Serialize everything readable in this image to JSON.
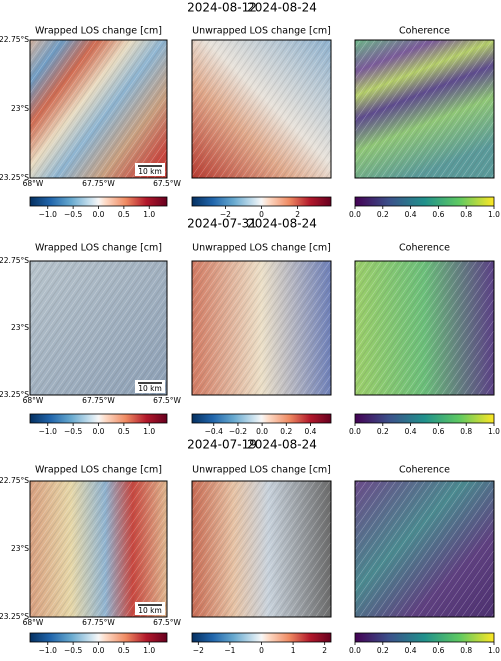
{
  "chart_data": {
    "type": "image_grid",
    "map_axes": {
      "y_labels": [
        "22.75°S",
        "23°S",
        "23.25°S"
      ],
      "x_labels": [
        "68°W",
        "67.75°W",
        "67.5°W"
      ],
      "scale_bar": "10 km"
    },
    "rows": [
      {
        "dates": [
          "2024-08-12",
          "2024-08-24"
        ],
        "panels": [
          {
            "title": "Wrapped LOS change [cm]",
            "colormap": "RdBu_r",
            "lim": [
              -1.35,
              1.35
            ],
            "ticks": [
              {
                "value": -1.0,
                "label": "−1.0"
              },
              {
                "value": -0.5,
                "label": "−0.5"
              },
              {
                "value": 0.0,
                "label": "0.0"
              },
              {
                "value": 0.5,
                "label": "0.5"
              },
              {
                "value": 1.0,
                "label": "1.0"
              }
            ]
          },
          {
            "title": "Unwrapped LOS change [cm]",
            "colormap": "RdBu_r",
            "lim": [
              -3.85,
              3.85
            ],
            "ticks": [
              {
                "value": -2,
                "label": "−2"
              },
              0,
              2
            ]
          },
          {
            "title": "Coherence",
            "colormap": "viridis",
            "lim": [
              0,
              1
            ],
            "ticks": [
              {
                "value": 0.0,
                "label": "0.0"
              },
              0.2,
              0.4,
              0.6,
              0.8,
              {
                "value": 1.0,
                "label": "1.0"
              }
            ]
          }
        ]
      },
      {
        "dates": [
          "2024-07-31",
          "2024-08-24"
        ],
        "panels": [
          {
            "title": "Wrapped LOS change [cm]",
            "colormap": "RdBu_r",
            "lim": [
              -1.35,
              1.35
            ],
            "ticks": [
              {
                "value": -1.0,
                "label": "−1.0"
              },
              {
                "value": -0.5,
                "label": "−0.5"
              },
              {
                "value": 0.0,
                "label": "0.0"
              },
              {
                "value": 0.5,
                "label": "0.5"
              },
              {
                "value": 1.0,
                "label": "1.0"
              }
            ]
          },
          {
            "title": "Unwrapped LOS change [cm]",
            "colormap": "RdBu_r",
            "lim": [
              -0.58,
              0.57
            ],
            "ticks": [
              {
                "value": -0.4,
                "label": "−0.4"
              },
              {
                "value": -0.2,
                "label": "−0.2"
              },
              {
                "value": 0.0,
                "label": "0.0"
              },
              0.2,
              0.4
            ]
          },
          {
            "title": "Coherence",
            "colormap": "viridis",
            "lim": [
              0,
              1
            ],
            "ticks": [
              {
                "value": 0.0,
                "label": "0.0"
              },
              0.2,
              0.4,
              0.6,
              0.8,
              {
                "value": 1.0,
                "label": "1.0"
              }
            ]
          }
        ]
      },
      {
        "dates": [
          "2024-07-19",
          "2024-08-24"
        ],
        "panels": [
          {
            "title": "Wrapped LOS change [cm]",
            "colormap": "RdBu_r",
            "lim": [
              -1.35,
              1.35
            ],
            "ticks": [
              {
                "value": -1.0,
                "label": "−1.0"
              },
              {
                "value": -0.5,
                "label": "−0.5"
              },
              {
                "value": 0.0,
                "label": "0.0"
              },
              {
                "value": 0.5,
                "label": "0.5"
              },
              {
                "value": 1.0,
                "label": "1.0"
              }
            ]
          },
          {
            "title": "Unwrapped LOS change [cm]",
            "colormap": "RdBu_r",
            "lim": [
              -2.2,
              2.2
            ],
            "ticks": [
              {
                "value": -2,
                "label": "−2"
              },
              {
                "value": -1,
                "label": "−1"
              },
              0,
              1,
              2
            ]
          },
          {
            "title": "Coherence",
            "colormap": "viridis",
            "lim": [
              0,
              1
            ],
            "ticks": [
              {
                "value": 0.0,
                "label": "0.0"
              },
              0.2,
              0.4,
              0.6,
              0.8,
              {
                "value": 1.0,
                "label": "1.0"
              }
            ]
          }
        ]
      }
    ]
  }
}
